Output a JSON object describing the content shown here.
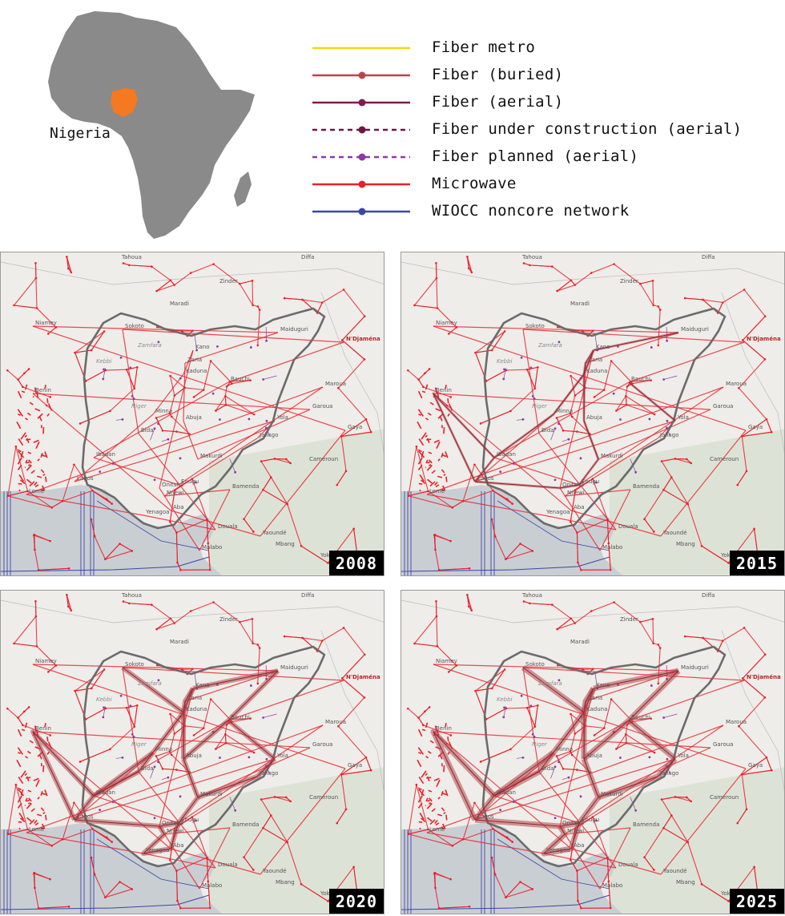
{
  "inset": {
    "label": "Nigeria",
    "africa_color": "#8a8a8a",
    "nigeria_color": "#f47920"
  },
  "legend": [
    {
      "label": "Fiber metro",
      "color": "#f5d90a",
      "style": "solid",
      "marker": false
    },
    {
      "label": "Fiber (buried)",
      "color": "#b5474b",
      "style": "solid",
      "marker": true
    },
    {
      "label": "Fiber (aerial)",
      "color": "#7e1d4e",
      "style": "solid",
      "marker": true
    },
    {
      "label": "Fiber under construction (aerial)",
      "color": "#6f1740",
      "style": "dashed",
      "marker": true
    },
    {
      "label": "Fiber planned (aerial)",
      "color": "#8a3aa8",
      "style": "dashed",
      "marker": true
    },
    {
      "label": "Microwave",
      "color": "#e8202a",
      "style": "solid",
      "marker": true
    },
    {
      "label": "WIOCC noncore network",
      "color": "#3c46a6",
      "style": "solid",
      "marker": true
    }
  ],
  "panels": [
    {
      "year": "2008",
      "fiber_level": 0
    },
    {
      "year": "2015",
      "fiber_level": 1
    },
    {
      "year": "2020",
      "fiber_level": 2
    },
    {
      "year": "2025",
      "fiber_level": 3
    }
  ],
  "map_labels": {
    "tahoua": "Tahoua",
    "diffa": "Diffa",
    "zinder": "Zinder",
    "maradi": "Maradi",
    "niamey": "Niamey",
    "sokoto": "Sokoto",
    "kano": "Kano",
    "maiduguri": "Maiduguri",
    "ndjamena": "N'Djaména",
    "kaduna": "Kaduna",
    "zaria": "Zaria",
    "bauchi": "Bauchi",
    "minna": "Minna",
    "abuja": "Abuja",
    "ibadan": "Ibadan",
    "lagos": "Lagos",
    "makurdi": "Makurdi",
    "enugu": "Enugu",
    "yola": "Yola",
    "garoua": "Garoua",
    "maroua": "Maroua",
    "cameroun": "Cameroun",
    "jalingo": "Jalingo",
    "benin": "Benin",
    "lome": "Lomé",
    "nnewi": "Nnewi",
    "aba": "Aba",
    "yenagoa": "Yenagoa",
    "bamenda": "Bamenda",
    "yaounde": "Yaoundé",
    "douala": "Douala",
    "malabo": "Malabo",
    "gaya": "Gaya",
    "kebbi": "Kebbi",
    "zamfara": "Zamfara",
    "niger": "Niger",
    "bida": "Bida",
    "onitsha": "Onitsha",
    "mbang": "Mbang",
    "sekedi": "Yokadouma"
  },
  "colors": {
    "map_bg": "#eeede9",
    "water": "#c9ced3",
    "border": "#6b6b6b",
    "microwave": "#e8202a",
    "fiber": "#b5474b",
    "wiocc": "#3c46a6",
    "planned": "#8a3aa8"
  }
}
